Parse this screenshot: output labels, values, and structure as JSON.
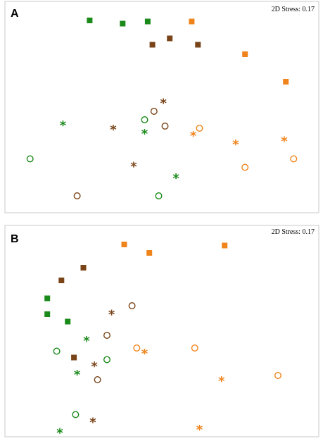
{
  "colors": {
    "green": "#1a8a1a",
    "brown": "#7a4419",
    "orange": "#f0841c"
  },
  "chart_data": [
    {
      "type": "scatter",
      "panel_label": "A",
      "stress_label": "2D Stress: 0.17",
      "axes": "none",
      "xlim": [
        0,
        100
      ],
      "ylim": [
        0,
        100
      ],
      "series": [
        {
          "color": "green",
          "marker": "square",
          "points": [
            [
              27,
              91
            ],
            [
              37.5,
              89.5
            ],
            [
              45.5,
              90.5
            ]
          ]
        },
        {
          "color": "brown",
          "marker": "square",
          "points": [
            [
              47,
              79.5
            ],
            [
              52.5,
              82.5
            ],
            [
              61.5,
              79.5
            ]
          ]
        },
        {
          "color": "orange",
          "marker": "square",
          "points": [
            [
              59.5,
              90.5
            ],
            [
              76.5,
              75
            ],
            [
              89.5,
              62
            ]
          ]
        },
        {
          "color": "green",
          "marker": "circle",
          "points": [
            [
              8,
              25.5
            ],
            [
              44.5,
              44
            ],
            [
              49,
              8
            ]
          ]
        },
        {
          "color": "brown",
          "marker": "circle",
          "points": [
            [
              23,
              8
            ],
            [
              47.5,
              48
            ],
            [
              51,
              41
            ]
          ]
        },
        {
          "color": "orange",
          "marker": "circle",
          "points": [
            [
              62,
              40
            ],
            [
              76.5,
              21.5
            ],
            [
              92,
              25.5
            ]
          ]
        },
        {
          "color": "green",
          "marker": "asterisk",
          "points": [
            [
              18.5,
              41.5
            ],
            [
              44.5,
              37.5
            ],
            [
              54.5,
              16.5
            ]
          ]
        },
        {
          "color": "brown",
          "marker": "asterisk",
          "points": [
            [
              34.5,
              39.5
            ],
            [
              41,
              22
            ],
            [
              50.5,
              52
            ]
          ]
        },
        {
          "color": "orange",
          "marker": "asterisk",
          "points": [
            [
              60,
              36.5
            ],
            [
              73.5,
              32.5
            ],
            [
              89,
              34
            ]
          ]
        }
      ]
    },
    {
      "type": "scatter",
      "panel_label": "B",
      "stress_label": "2D Stress: 0.17",
      "axes": "none",
      "xlim": [
        0,
        100
      ],
      "ylim": [
        0,
        100
      ],
      "series": [
        {
          "color": "green",
          "marker": "square",
          "points": [
            [
              13.5,
              65.5
            ],
            [
              13.5,
              58
            ],
            [
              20,
              54.5
            ]
          ]
        },
        {
          "color": "brown",
          "marker": "square",
          "points": [
            [
              18,
              74
            ],
            [
              25,
              80
            ],
            [
              22,
              37.5
            ]
          ]
        },
        {
          "color": "orange",
          "marker": "square",
          "points": [
            [
              38,
              91
            ],
            [
              46,
              87
            ],
            [
              70,
              90.5
            ]
          ]
        },
        {
          "color": "green",
          "marker": "circle",
          "points": [
            [
              16.5,
              40.5
            ],
            [
              32.5,
              36.5
            ],
            [
              22.5,
              10.5
            ]
          ]
        },
        {
          "color": "brown",
          "marker": "circle",
          "points": [
            [
              40.5,
              62
            ],
            [
              32.5,
              48
            ],
            [
              29.5,
              27
            ]
          ]
        },
        {
          "color": "orange",
          "marker": "circle",
          "points": [
            [
              42,
              42
            ],
            [
              60.5,
              42
            ],
            [
              87,
              29
            ]
          ]
        },
        {
          "color": "green",
          "marker": "asterisk",
          "points": [
            [
              26,
              45.5
            ],
            [
              23,
              29.5
            ],
            [
              17.5,
              2
            ]
          ]
        },
        {
          "color": "brown",
          "marker": "asterisk",
          "points": [
            [
              34,
              58
            ],
            [
              28.5,
              33.5
            ],
            [
              28,
              7
            ]
          ]
        },
        {
          "color": "orange",
          "marker": "asterisk",
          "points": [
            [
              44.5,
              39.5
            ],
            [
              69,
              26.5
            ],
            [
              62,
              3.5
            ]
          ]
        }
      ]
    }
  ]
}
